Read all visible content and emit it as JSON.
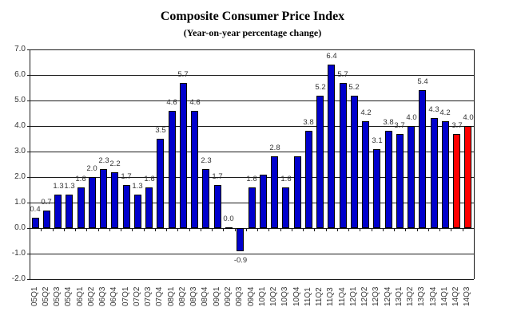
{
  "chart": {
    "title": "Composite Consumer Price Index",
    "subtitle": "(Year-on-year percentage change)"
  },
  "chart_data": {
    "type": "bar",
    "title": "Composite Consumer Price Index",
    "subtitle": "(Year-on-year percentage change)",
    "xlabel": "",
    "ylabel": "",
    "ylim": [
      -2.0,
      7.0
    ],
    "ytick_step": 1.0,
    "ytick_labels": [
      "7.0",
      "6.0",
      "5.0",
      "4.0",
      "3.0",
      "2.0",
      "1.0",
      "0.0",
      "-1.0",
      "-2.0"
    ],
    "grid": true,
    "legend": false,
    "categories": [
      "05Q1",
      "05Q2",
      "05Q3",
      "05Q4",
      "06Q1",
      "06Q2",
      "06Q3",
      "06Q4",
      "07Q1",
      "07Q2",
      "07Q3",
      "07Q4",
      "08Q1",
      "08Q2",
      "08Q3",
      "08Q4",
      "09Q1",
      "09Q2",
      "09Q3",
      "09Q4",
      "10Q1",
      "10Q2",
      "10Q3",
      "10Q4",
      "11Q1",
      "11Q2",
      "11Q3",
      "11Q4",
      "12Q1",
      "12Q2",
      "12Q3",
      "12Q4",
      "13Q1",
      "13Q2",
      "13Q3",
      "13Q4",
      "14Q1",
      "14Q2",
      "14Q3"
    ],
    "values": [
      0.4,
      0.7,
      1.3,
      1.3,
      1.6,
      2.0,
      2.3,
      2.2,
      1.7,
      1.3,
      1.6,
      3.5,
      4.6,
      5.7,
      4.6,
      2.3,
      1.7,
      0.0,
      -0.9,
      1.6,
      2.1,
      2.8,
      1.6,
      2.8,
      3.8,
      5.2,
      6.4,
      5.7,
      5.2,
      4.2,
      3.1,
      3.8,
      3.7,
      4.0,
      5.4,
      4.3,
      4.2,
      3.7,
      4.0
    ],
    "bar_labels": [
      "0.4",
      "0.7",
      "1.3",
      "1.3",
      "1.6",
      "2.0",
      "2.3",
      "2.2",
      "1.7",
      "1.3",
      "1.6",
      "3.5",
      "4.6",
      "5.7",
      "4.6",
      "2.3",
      "1.7",
      "0.0",
      "-0.9",
      "1.6",
      null,
      "2.8",
      "1.6",
      null,
      "3.8",
      "5.2",
      "6.4",
      "5.7",
      "5.2",
      "4.2",
      "3.1",
      "3.8",
      "3.7",
      "4.0",
      "5.4",
      "4.3",
      "4.2",
      "3.7",
      "4.0"
    ],
    "highlight_categories": [
      "14Q2",
      "14Q3"
    ],
    "colors": {
      "bar": "#0000CC",
      "highlight": "#FF0000",
      "grid": "#1a1a1a",
      "text": "#333333",
      "title": "#000000",
      "background": "#ffffff"
    }
  }
}
